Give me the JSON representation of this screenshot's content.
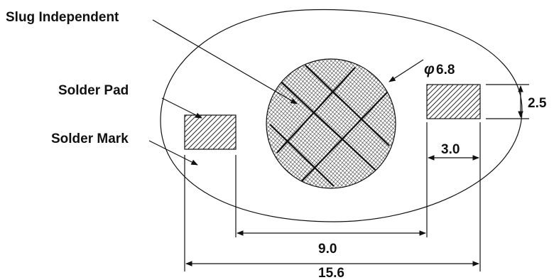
{
  "labels": {
    "slug": "Slug Independent",
    "pad": "Solder Pad",
    "mark": "Solder Mark"
  },
  "dimensions": {
    "diameter_symbol": "φ",
    "diameter": "6.8",
    "pad_height": "2.5",
    "pad_width": "3.0",
    "pad_gap": "9.0",
    "overall": "15.6"
  },
  "colors": {
    "ink": "#111111",
    "background": "#ffffff"
  }
}
